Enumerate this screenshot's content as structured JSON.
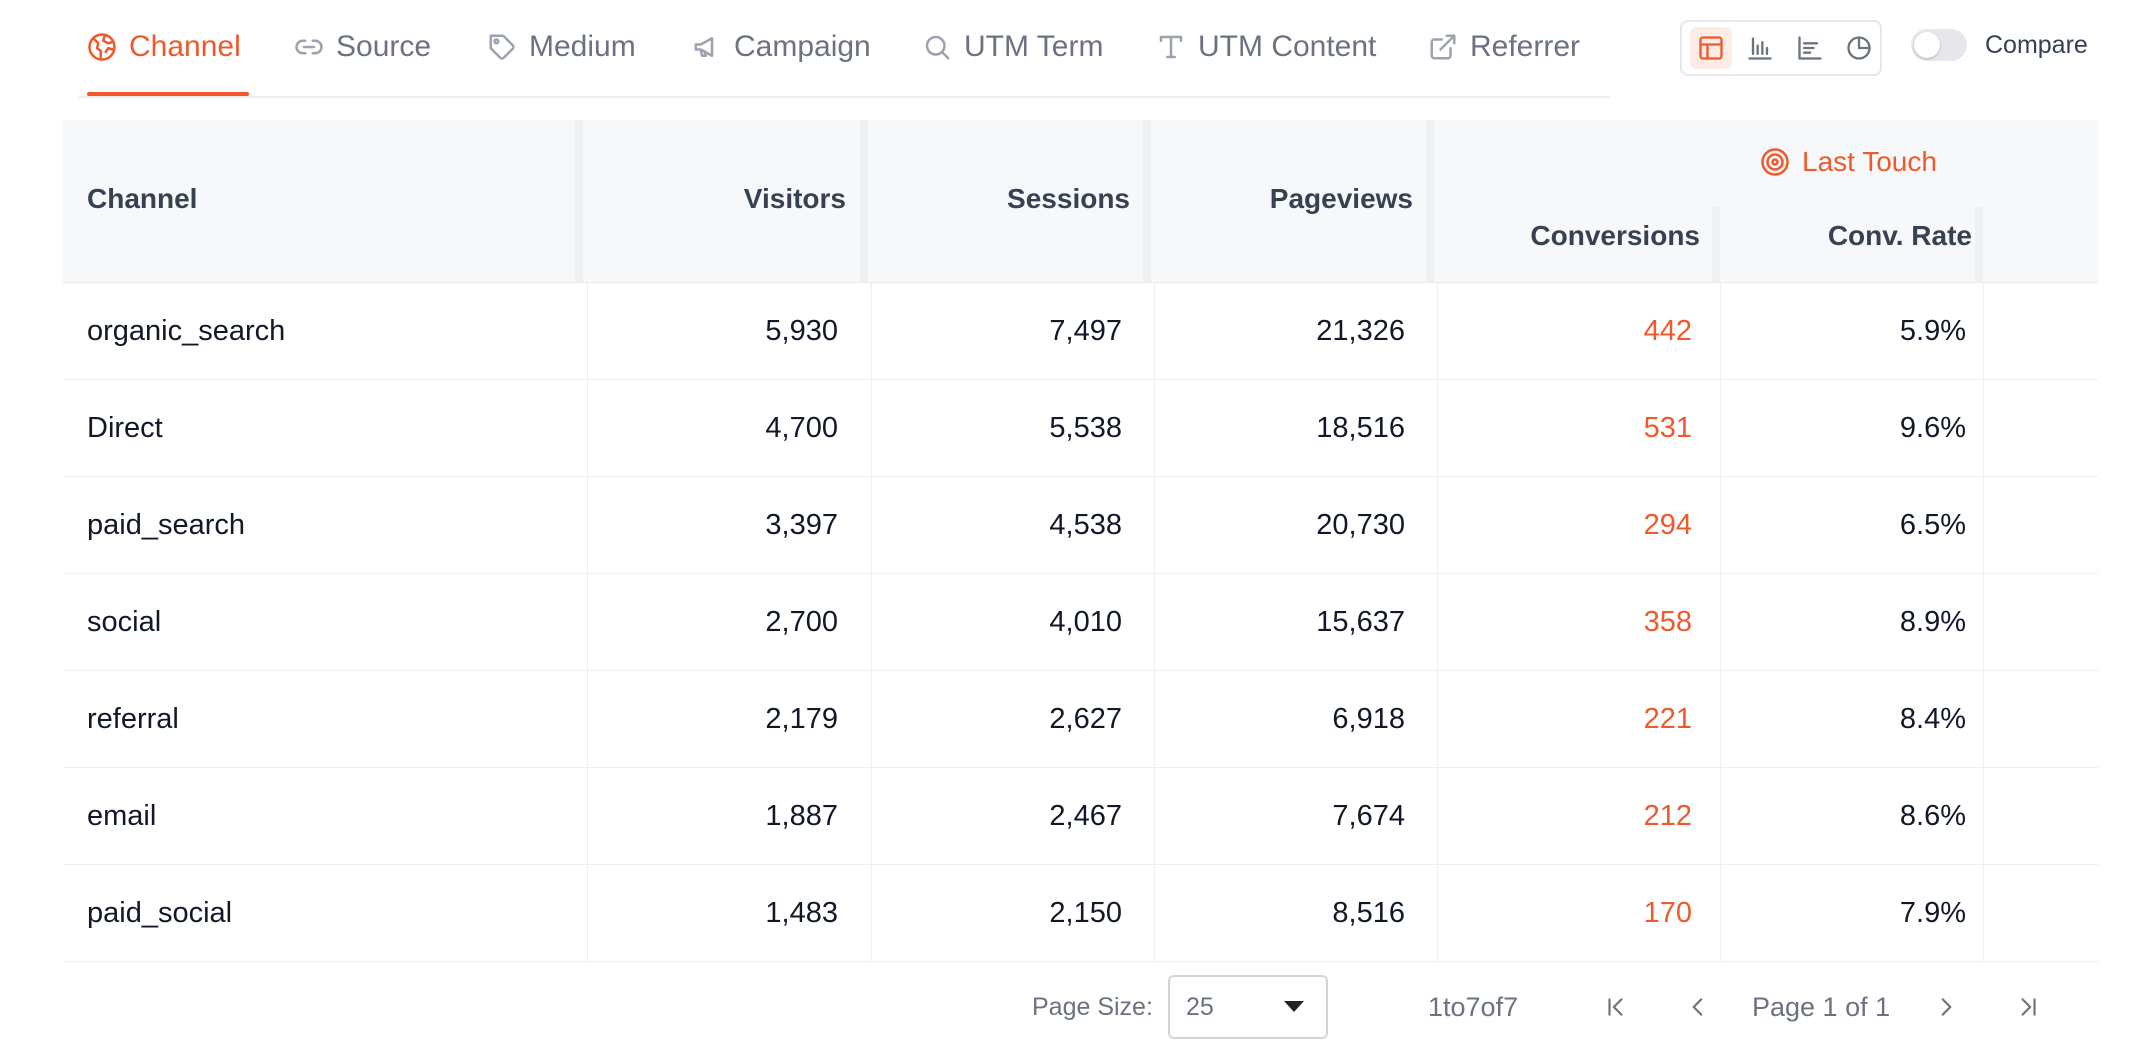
{
  "tabs": [
    {
      "label": "Channel",
      "icon": "channel-icon"
    },
    {
      "label": "Source",
      "icon": "link-icon"
    },
    {
      "label": "Medium",
      "icon": "tag-icon"
    },
    {
      "label": "Campaign",
      "icon": "megaphone-icon"
    },
    {
      "label": "UTM Term",
      "icon": "search-icon"
    },
    {
      "label": "UTM Content",
      "icon": "text-icon"
    },
    {
      "label": "Referrer",
      "icon": "external-link-icon"
    }
  ],
  "active_tab": "Channel",
  "view_options": [
    "table",
    "bar-chart",
    "line-chart",
    "pie-chart"
  ],
  "active_view": "table",
  "compare": {
    "label": "Compare",
    "enabled": false
  },
  "accent_color": "#ee5a2b",
  "table": {
    "headers": {
      "channel": "Channel",
      "visitors": "Visitors",
      "sessions": "Sessions",
      "pageviews": "Pageviews",
      "group": "Last Touch",
      "conversions": "Conversions",
      "conv_rate": "Conv. Rate"
    },
    "rows": [
      {
        "channel": "organic_search",
        "visitors": "5,930",
        "sessions": "7,497",
        "pageviews": "21,326",
        "conversions": "442",
        "conv_rate": "5.9%"
      },
      {
        "channel": "Direct",
        "visitors": "4,700",
        "sessions": "5,538",
        "pageviews": "18,516",
        "conversions": "531",
        "conv_rate": "9.6%"
      },
      {
        "channel": "paid_search",
        "visitors": "3,397",
        "sessions": "4,538",
        "pageviews": "20,730",
        "conversions": "294",
        "conv_rate": "6.5%"
      },
      {
        "channel": "social",
        "visitors": "2,700",
        "sessions": "4,010",
        "pageviews": "15,637",
        "conversions": "358",
        "conv_rate": "8.9%"
      },
      {
        "channel": "referral",
        "visitors": "2,179",
        "sessions": "2,627",
        "pageviews": "6,918",
        "conversions": "221",
        "conv_rate": "8.4%"
      },
      {
        "channel": "email",
        "visitors": "1,887",
        "sessions": "2,467",
        "pageviews": "7,674",
        "conversions": "212",
        "conv_rate": "8.6%"
      },
      {
        "channel": "paid_social",
        "visitors": "1,483",
        "sessions": "2,150",
        "pageviews": "8,516",
        "conversions": "170",
        "conv_rate": "7.9%"
      }
    ]
  },
  "pagination": {
    "page_size_label": "Page Size:",
    "page_size": "25",
    "range_text": "1to7of7",
    "page_text": "Page 1 of 1"
  }
}
